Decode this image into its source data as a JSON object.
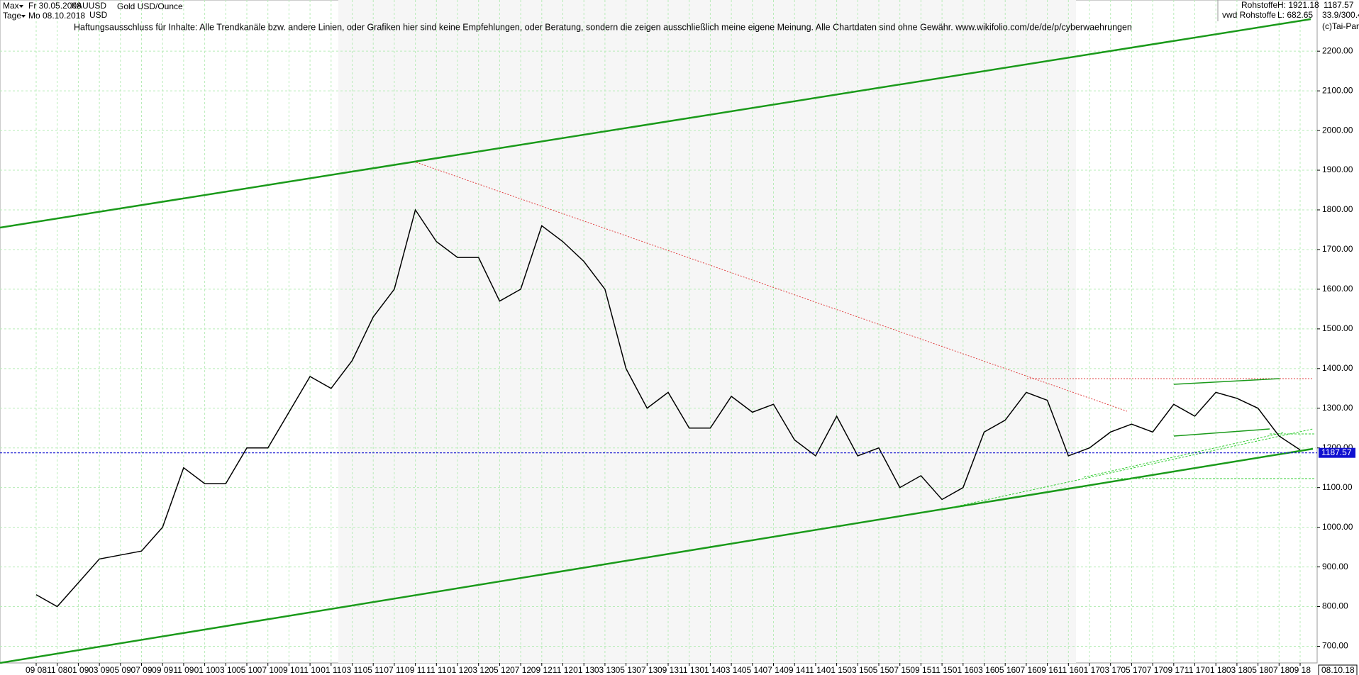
{
  "header": {
    "range": "Max",
    "start_date": "Fr 30.05.2008",
    "period": "Tage",
    "end_date": "Mo 08.10.2018",
    "symbol": "XAUUSD",
    "currency": "USD",
    "instrument": "Gold USD/Ounce",
    "group": "Rohstoffe",
    "source": "vwd Rohstoffe",
    "high": "H: 1921.18",
    "low": "L: 682.65",
    "ratio": "33.9/300.4",
    "copyright": "(c)Tai-Pan",
    "disclaimer": "Haftungsausschluss für Inhalte: Alle Trendkanäle bzw. andere Linien, oder Grafiken hier sind keine Empfehlungen, oder Beratung, sondern die zeigen ausschließlich meine eigene Meinung. Alle Chartdaten sind ohne Gewähr.  www.wikifolio.com/de/de/p/cyberwaehrungen"
  },
  "chart_data": {
    "type": "line",
    "categories": [
      "09 08",
      "11 08",
      "01 09",
      "03 09",
      "05 09",
      "07 09",
      "09 09",
      "11 09",
      "01 10",
      "03 10",
      "05 10",
      "07 10",
      "09 10",
      "11 10",
      "01 11",
      "03 11",
      "05 11",
      "07 11",
      "09 11",
      "11 11",
      "01 12",
      "03 12",
      "05 12",
      "07 12",
      "09 12",
      "11 12",
      "01 13",
      "03 13",
      "05 13",
      "07 13",
      "09 13",
      "11 13",
      "01 14",
      "03 14",
      "05 14",
      "07 14",
      "09 14",
      "11 14",
      "01 15",
      "03 15",
      "05 15",
      "07 15",
      "09 15",
      "11 15",
      "01 16",
      "03 16",
      "05 16",
      "07 16",
      "09 16",
      "11 16",
      "01 17",
      "03 17",
      "05 17",
      "07 17",
      "09 17",
      "11 17",
      "01 18",
      "03 18",
      "05 18",
      "07 18",
      "09 18"
    ],
    "series": [
      {
        "name": "XAUUSD",
        "color": "#000000",
        "values": [
          830,
          800,
          860,
          920,
          930,
          940,
          1000,
          1150,
          1110,
          1110,
          1200,
          1200,
          1290,
          1380,
          1350,
          1420,
          1530,
          1600,
          1800,
          1720,
          1680,
          1680,
          1570,
          1600,
          1760,
          1720,
          1670,
          1600,
          1400,
          1300,
          1340,
          1250,
          1250,
          1330,
          1290,
          1310,
          1220,
          1180,
          1280,
          1180,
          1200,
          1100,
          1130,
          1070,
          1100,
          1240,
          1270,
          1340,
          1320,
          1180,
          1200,
          1240,
          1260,
          1240,
          1310,
          1280,
          1340,
          1325,
          1300,
          1230,
          1195
        ]
      }
    ],
    "ylim": [
      658,
      2329
    ],
    "yticks": [
      {
        "value": 700,
        "label": "700.00"
      },
      {
        "value": 800,
        "label": "800.00"
      },
      {
        "value": 900,
        "label": "900.00"
      },
      {
        "value": 1000,
        "label": "1000.00"
      },
      {
        "value": 1100,
        "label": "1100.00"
      },
      {
        "value": 1200,
        "label": "1200.00"
      },
      {
        "value": 1300,
        "label": "1300.00"
      },
      {
        "value": 1400,
        "label": "1400.00"
      },
      {
        "value": 1500,
        "label": "1500.00"
      },
      {
        "value": 1600,
        "label": "1600.00"
      },
      {
        "value": 1700,
        "label": "1700.00"
      },
      {
        "value": 1800,
        "label": "1800.00"
      },
      {
        "value": 1900,
        "label": "1900.00"
      },
      {
        "value": 2000,
        "label": "2000.00"
      },
      {
        "value": 2100,
        "label": "2100.00"
      },
      {
        "value": 2200,
        "label": "2200.00"
      }
    ],
    "current_price": {
      "value": 1187.57,
      "label": "1187.57"
    },
    "x_end_label": "08.10.18",
    "grid": true
  }
}
